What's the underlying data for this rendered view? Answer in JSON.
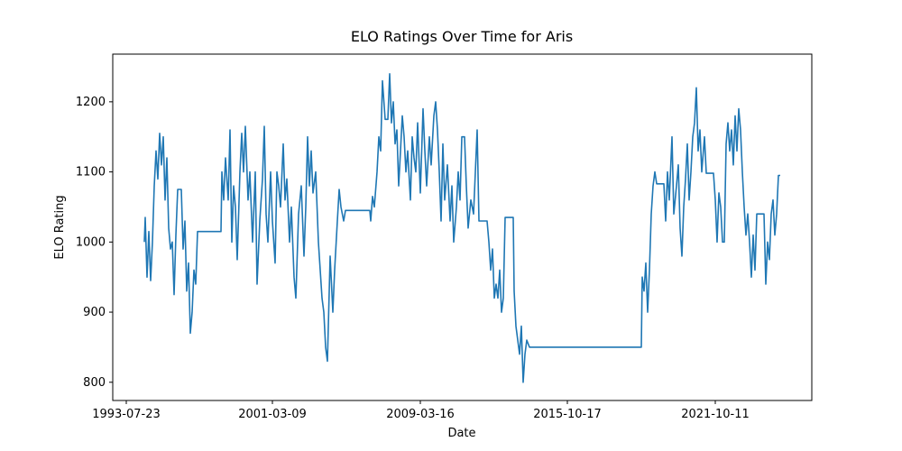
{
  "chart_data": {
    "type": "line",
    "title": "ELO Ratings Over Time for Aris",
    "x_label": "Date",
    "y_label": "ELO Rating",
    "color": "#1f77b4",
    "grid": false,
    "xlim": [
      -15,
      760
    ],
    "xticks": [
      {
        "value": 0,
        "label": "1993-07-23"
      },
      {
        "value": 162,
        "label": "2001-03-09"
      },
      {
        "value": 326,
        "label": "2009-03-16"
      },
      {
        "value": 489,
        "label": "2015-10-17"
      },
      {
        "value": 653,
        "label": "2021-10-11"
      }
    ],
    "ylim": [
      774,
      1268
    ],
    "yticks": [
      800,
      900,
      1000,
      1100,
      1200
    ],
    "x": [
      20,
      21,
      23,
      25,
      27,
      29,
      31,
      33,
      35,
      37,
      39,
      41,
      43,
      45,
      47,
      49,
      51,
      53,
      55,
      57,
      61,
      63,
      65,
      67,
      69,
      71,
      73,
      75,
      77,
      79,
      105,
      106,
      108,
      110,
      113,
      115,
      117,
      119,
      121,
      123,
      126,
      128,
      130,
      132,
      135,
      137,
      140,
      143,
      145,
      148,
      151,
      153,
      155,
      157,
      160,
      162,
      165,
      167,
      169,
      171,
      174,
      176,
      178,
      181,
      183,
      186,
      188,
      191,
      194,
      197,
      199,
      201,
      203,
      205,
      207,
      210,
      213,
      215,
      217,
      219,
      221,
      223,
      226,
      229,
      231,
      234,
      236,
      238,
      241,
      243,
      245,
      270,
      271,
      273,
      275,
      278,
      280,
      282,
      284,
      287,
      290,
      292,
      294,
      296,
      298,
      300,
      302,
      304,
      306,
      308,
      310,
      312,
      315,
      317,
      319,
      321,
      323,
      326,
      329,
      331,
      333,
      336,
      338,
      341,
      343,
      345,
      347,
      349,
      351,
      353,
      356,
      359,
      361,
      363,
      366,
      368,
      370,
      372,
      375,
      377,
      379,
      382,
      385,
      387,
      389,
      391,
      400,
      402,
      404,
      406,
      408,
      410,
      412,
      414,
      416,
      418,
      420,
      429,
      430,
      432,
      434,
      436,
      438,
      440,
      442,
      444,
      447,
      571,
      572,
      574,
      576,
      578,
      580,
      582,
      584,
      586,
      588,
      596,
      598,
      600,
      602,
      605,
      607,
      610,
      612,
      614,
      616,
      618,
      620,
      622,
      624,
      626,
      628,
      630,
      632,
      634,
      636,
      638,
      641,
      643,
      651,
      653,
      655,
      657,
      659,
      661,
      663,
      665,
      667,
      669,
      671,
      673,
      675,
      677,
      679,
      681,
      683,
      685,
      687,
      689,
      691,
      693,
      695,
      697,
      699,
      707,
      709,
      711,
      713,
      715,
      717,
      719,
      721,
      723,
      725
    ],
    "values": [
      1000,
      1035,
      950,
      1015,
      945,
      1000,
      1080,
      1130,
      1090,
      1155,
      1110,
      1150,
      1060,
      1120,
      1020,
      990,
      1000,
      925,
      1010,
      1075,
      1075,
      990,
      1030,
      930,
      970,
      870,
      900,
      960,
      940,
      1015,
      1015,
      1100,
      1060,
      1120,
      1060,
      1160,
      1000,
      1080,
      1050,
      975,
      1100,
      1155,
      1100,
      1165,
      1060,
      1100,
      1000,
      1100,
      940,
      1030,
      1090,
      1165,
      1040,
      1000,
      1100,
      1030,
      970,
      1100,
      1080,
      1050,
      1140,
      1060,
      1090,
      1000,
      1050,
      950,
      920,
      1040,
      1080,
      980,
      1050,
      1150,
      1080,
      1130,
      1070,
      1100,
      1000,
      960,
      920,
      900,
      850,
      830,
      980,
      900,
      960,
      1030,
      1075,
      1050,
      1030,
      1045,
      1045,
      1045,
      1030,
      1065,
      1050,
      1100,
      1150,
      1130,
      1230,
      1175,
      1175,
      1240,
      1170,
      1200,
      1140,
      1160,
      1080,
      1130,
      1180,
      1150,
      1100,
      1130,
      1060,
      1150,
      1120,
      1100,
      1170,
      1070,
      1190,
      1130,
      1080,
      1150,
      1110,
      1180,
      1200,
      1160,
      1100,
      1030,
      1140,
      1060,
      1110,
      1030,
      1080,
      1000,
      1050,
      1100,
      1060,
      1150,
      1150,
      1080,
      1020,
      1060,
      1040,
      1100,
      1160,
      1030,
      1030,
      1000,
      960,
      990,
      920,
      940,
      920,
      960,
      900,
      920,
      1035,
      1035,
      930,
      880,
      860,
      840,
      880,
      800,
      840,
      860,
      850,
      850,
      950,
      930,
      970,
      900,
      960,
      1040,
      1080,
      1100,
      1083,
      1083,
      1030,
      1100,
      1060,
      1150,
      1040,
      1080,
      1110,
      1020,
      980,
      1050,
      1090,
      1140,
      1060,
      1100,
      1150,
      1170,
      1220,
      1130,
      1160,
      1100,
      1150,
      1098,
      1098,
      1060,
      1000,
      1070,
      1050,
      1000,
      1000,
      1140,
      1170,
      1130,
      1160,
      1110,
      1180,
      1130,
      1190,
      1160,
      1100,
      1050,
      1010,
      1040,
      1000,
      950,
      1010,
      960,
      1040,
      1040,
      940,
      1000,
      975,
      1040,
      1060,
      1010,
      1040,
      1095,
      1095
    ]
  }
}
